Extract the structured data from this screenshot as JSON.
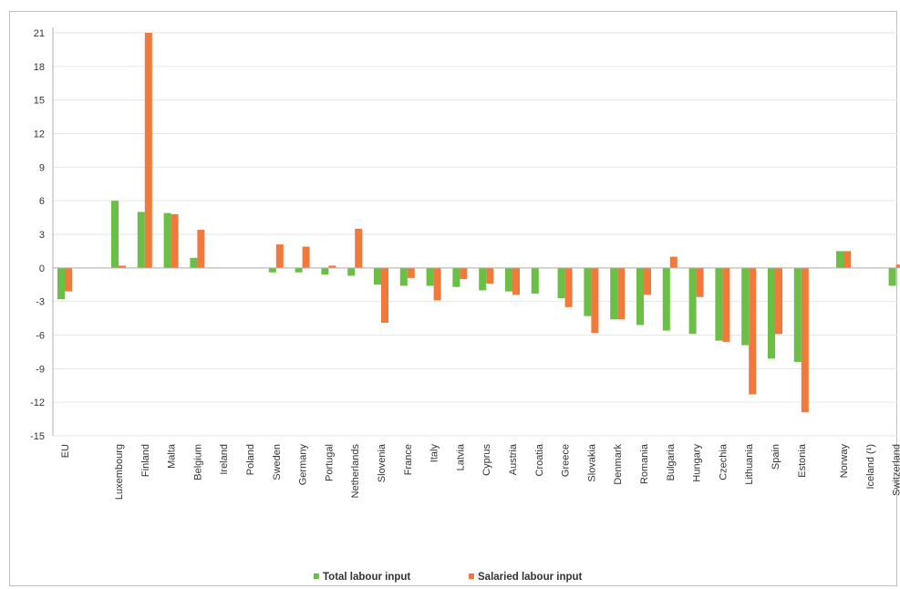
{
  "chart_data": {
    "type": "bar",
    "title": "",
    "xlabel": "",
    "ylabel": "",
    "ylim": [
      -15,
      21
    ],
    "yticks": [
      21,
      18,
      15,
      12,
      9,
      6,
      3,
      0,
      -3,
      -6,
      -9,
      -12,
      -15
    ],
    "grid": true,
    "legend_position": "bottom-center",
    "categories": [
      "EU",
      "Luxembourg",
      "Finland",
      "Malta",
      "Belgium",
      "Ireland",
      "Poland",
      "Sweden",
      "Germany",
      "Portugal",
      "Netherlands",
      "Slovenia",
      "France",
      "Italy",
      "Latvia",
      "Cyprus",
      "Austria",
      "Croatia",
      "Greece",
      "Slovakia",
      "Denmark",
      "Romania",
      "Bulgaria",
      "Hungary",
      "Czechia",
      "Lithuania",
      "Spain",
      "Estonia",
      "Norway",
      "Iceland (¹)",
      "Switzerland"
    ],
    "series": [
      {
        "name": "Total labour input",
        "color": "#6abf45",
        "values": [
          -2.8,
          6.0,
          5.0,
          4.9,
          0.9,
          0,
          0,
          -0.4,
          -0.4,
          -0.6,
          -0.7,
          -1.5,
          -1.6,
          -1.6,
          -1.7,
          -2.0,
          -2.1,
          -2.3,
          -2.7,
          -4.3,
          -4.6,
          -5.1,
          -5.6,
          -5.9,
          -6.5,
          -6.9,
          -8.1,
          -8.4,
          1.5,
          0,
          -1.6
        ]
      },
      {
        "name": "Salaried labour input",
        "color": "#f07a3c",
        "values": [
          -2.1,
          0.2,
          21.0,
          4.8,
          3.4,
          0,
          0,
          2.1,
          1.9,
          0.2,
          3.5,
          -4.9,
          -0.9,
          -2.9,
          -1.0,
          -1.4,
          -2.4,
          0,
          -3.5,
          -5.8,
          -4.6,
          -2.4,
          1.0,
          -2.6,
          -6.6,
          -11.3,
          -5.9,
          -12.9,
          1.5,
          0,
          0.3
        ]
      }
    ]
  }
}
